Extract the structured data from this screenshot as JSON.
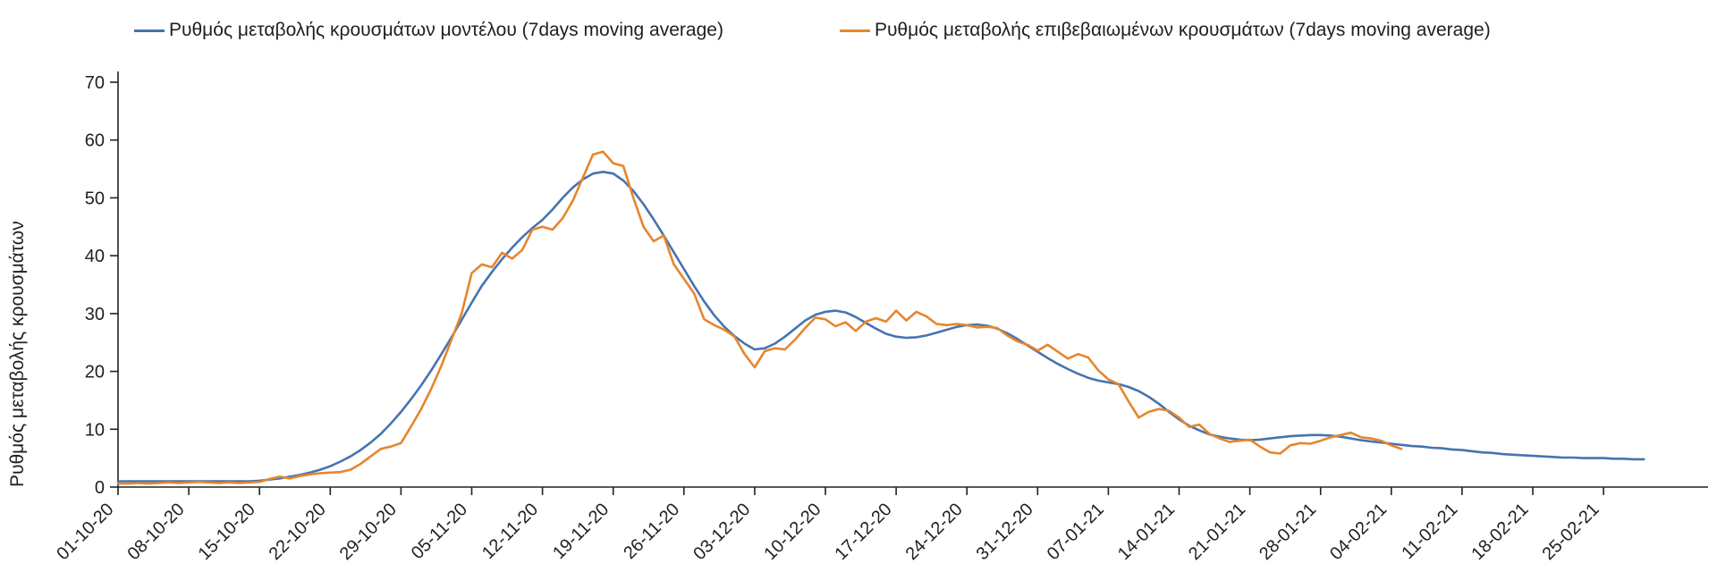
{
  "colors": {
    "model_line": "#4674b0",
    "confirmed_line": "#e5862d",
    "axis": "#222222",
    "text": "#1f1f1f",
    "background": "#ffffff"
  },
  "chart_data": {
    "type": "line",
    "title": "",
    "xlabel": "",
    "ylabel": "Ρυθμός μεταβολής κρουσμάτων",
    "ylim": [
      0,
      70
    ],
    "y_ticks": [
      0,
      10,
      20,
      30,
      40,
      50,
      60,
      70
    ],
    "grid": false,
    "legend_position": "top",
    "tick_interval_days": 7,
    "x_tick_labels": [
      "01-10-20",
      "08-10-20",
      "15-10-20",
      "22-10-20",
      "29-10-20",
      "05-11-20",
      "12-11-20",
      "19-11-20",
      "26-11-20",
      "03-12-20",
      "10-12-20",
      "17-12-20",
      "24-12-20",
      "31-12-20",
      "07-01-21",
      "14-01-21",
      "21-01-21",
      "28-01-21",
      "04-02-21",
      "11-02-21",
      "18-02-21",
      "25-02-21"
    ],
    "series": [
      {
        "name": "Ρυθμός μεταβολής κρουσμάτων μοντέλου (7days moving average)",
        "color": "#4674b0",
        "start_day": 0,
        "values": [
          1.0,
          1.0,
          1.0,
          1.0,
          1.0,
          1.0,
          1.0,
          1.0,
          1.0,
          1.0,
          1.0,
          1.0,
          1.0,
          1.0,
          1.1,
          1.3,
          1.5,
          1.8,
          2.1,
          2.5,
          3.0,
          3.6,
          4.4,
          5.3,
          6.4,
          7.7,
          9.2,
          11.0,
          13.0,
          15.2,
          17.6,
          20.2,
          23.0,
          25.9,
          28.9,
          31.9,
          34.8,
          37.2,
          39.4,
          41.4,
          43.2,
          44.8,
          46.2,
          48.0,
          50.0,
          51.8,
          53.2,
          54.2,
          54.5,
          54.2,
          53.0,
          51.2,
          48.9,
          46.3,
          43.5,
          40.6,
          37.7,
          34.8,
          32.1,
          29.7,
          27.7,
          26.1,
          24.8,
          23.8,
          24.0,
          24.8,
          26.0,
          27.4,
          28.8,
          29.8,
          30.3,
          30.5,
          30.2,
          29.4,
          28.4,
          27.4,
          26.5,
          26.0,
          25.8,
          25.9,
          26.2,
          26.7,
          27.2,
          27.7,
          28.0,
          28.1,
          27.9,
          27.4,
          26.6,
          25.6,
          24.5,
          23.4,
          22.3,
          21.3,
          20.4,
          19.6,
          18.9,
          18.4,
          18.1,
          17.8,
          17.3,
          16.6,
          15.6,
          14.4,
          13.0,
          11.7,
          10.6,
          9.8,
          9.1,
          8.7,
          8.4,
          8.2,
          8.1,
          8.2,
          8.4,
          8.6,
          8.8,
          8.9,
          9.0,
          9.0,
          8.9,
          8.7,
          8.4,
          8.1,
          7.9,
          7.7,
          7.5,
          7.3,
          7.1,
          7.0,
          6.8,
          6.7,
          6.5,
          6.4,
          6.2,
          6.0,
          5.9,
          5.7,
          5.6,
          5.5,
          5.4,
          5.3,
          5.2,
          5.1,
          5.1,
          5.0,
          5.0,
          5.0,
          4.9,
          4.9,
          4.8,
          4.8
        ]
      },
      {
        "name": "Ρυθμός μεταβολής επιβεβαιωμένων κρουσμάτων (7days moving average)",
        "color": "#e5862d",
        "start_day": 0,
        "values": [
          0.6,
          0.6,
          0.7,
          0.6,
          0.7,
          0.8,
          0.7,
          0.8,
          0.9,
          0.8,
          0.7,
          0.8,
          0.7,
          0.8,
          0.9,
          1.4,
          1.8,
          1.5,
          1.9,
          2.2,
          2.4,
          2.5,
          2.6,
          3.0,
          4.0,
          5.3,
          6.6,
          7.0,
          7.6,
          10.5,
          13.5,
          17.0,
          21.0,
          25.5,
          30.0,
          37.0,
          38.5,
          38.0,
          40.5,
          39.5,
          41.0,
          44.5,
          45.0,
          44.5,
          46.5,
          49.5,
          53.5,
          57.5,
          58.0,
          56.0,
          55.5,
          50.0,
          45.0,
          42.5,
          43.5,
          38.5,
          36.0,
          33.5,
          29.0,
          28.0,
          27.2,
          26.0,
          23.0,
          20.7,
          23.5,
          24.0,
          23.8,
          25.5,
          27.5,
          29.3,
          29.0,
          27.8,
          28.5,
          27.0,
          28.6,
          29.2,
          28.6,
          30.5,
          28.8,
          30.3,
          29.5,
          28.2,
          28.0,
          28.2,
          28.0,
          27.6,
          27.7,
          27.5,
          26.2,
          25.2,
          24.6,
          23.6,
          24.6,
          23.4,
          22.2,
          23.0,
          22.4,
          20.2,
          18.6,
          17.8,
          14.8,
          12.0,
          13.0,
          13.5,
          13.2,
          12.0,
          10.4,
          10.8,
          9.2,
          8.4,
          7.8,
          8.0,
          8.2,
          7.0,
          6.0,
          5.8,
          7.2,
          7.6,
          7.5,
          8.0,
          8.6,
          9.0,
          9.4,
          8.6,
          8.4,
          8.0,
          7.2,
          6.6
        ]
      }
    ]
  }
}
